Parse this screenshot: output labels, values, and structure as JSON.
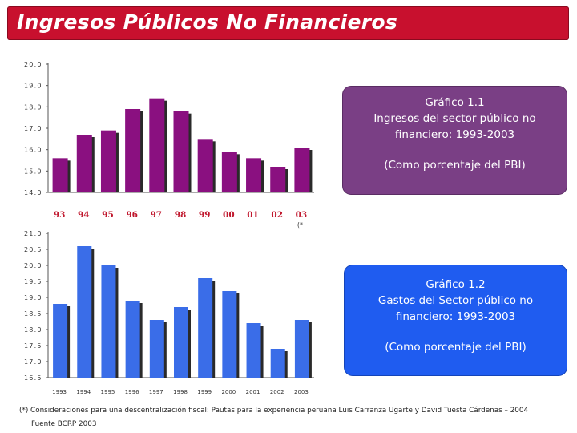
{
  "header": {
    "title": "Ingresos Públicos No Financieros"
  },
  "colors": {
    "title_bg": "#c8102e",
    "bar_purple": "#8a1080",
    "bar_blue": "#3a6de8",
    "box_purple": "#7a3f85",
    "box_blue": "#1f5cf0",
    "year_label_red": "#c0182e"
  },
  "chart_data": [
    {
      "type": "bar",
      "categories": [
        "93",
        "94",
        "95",
        "96",
        "97",
        "98",
        "99",
        "00",
        "01",
        "02",
        "03"
      ],
      "category_note": "(*",
      "values": [
        15.6,
        16.7,
        16.9,
        17.9,
        18.4,
        17.8,
        16.5,
        15.9,
        15.6,
        15.2,
        16.1
      ],
      "yticks": [
        "20.0",
        "19.0",
        "18.0",
        "17.0",
        "16.0",
        "15.0",
        "14.0"
      ],
      "ylim": [
        14,
        20
      ],
      "title": "Gráfico 1.1",
      "subtitle": "Ingresos del sector público no financiero: 1993-2003",
      "note": "(Como porcentaje del PBI)",
      "title_lines": [
        "Gráfico 1.1",
        "Ingresos del sector público no",
        "financiero: 1993-2003"
      ]
    },
    {
      "type": "bar",
      "categories": [
        "1993",
        "1994",
        "1995",
        "1996",
        "1997",
        "1998",
        "1999",
        "2000",
        "2001",
        "2002",
        "2003"
      ],
      "values": [
        18.8,
        20.6,
        20.0,
        18.9,
        18.3,
        18.7,
        19.6,
        19.2,
        18.2,
        17.4,
        18.3
      ],
      "yticks": [
        "21.0",
        "20.5",
        "20.0",
        "19.5",
        "19.0",
        "18.5",
        "18.0",
        "17.5",
        "17.0",
        "16.5"
      ],
      "ylim": [
        16.5,
        21
      ],
      "title": "Gráfico 1.2",
      "subtitle": "Gastos del Sector público no financiero: 1993-2003",
      "note": "(Como porcentaje del PBI)",
      "title_lines": [
        "Gráfico 1.2",
        "Gastos del Sector público no",
        "financiero: 1993-2003"
      ]
    }
  ],
  "footnote": "(*) Consideraciones para una descentralización fiscal: Pautas para la experiencia peruana Luis Carranza Ugarte y David Tuesta Cárdenas – 2004",
  "source": "Fuente BCRP 2003"
}
